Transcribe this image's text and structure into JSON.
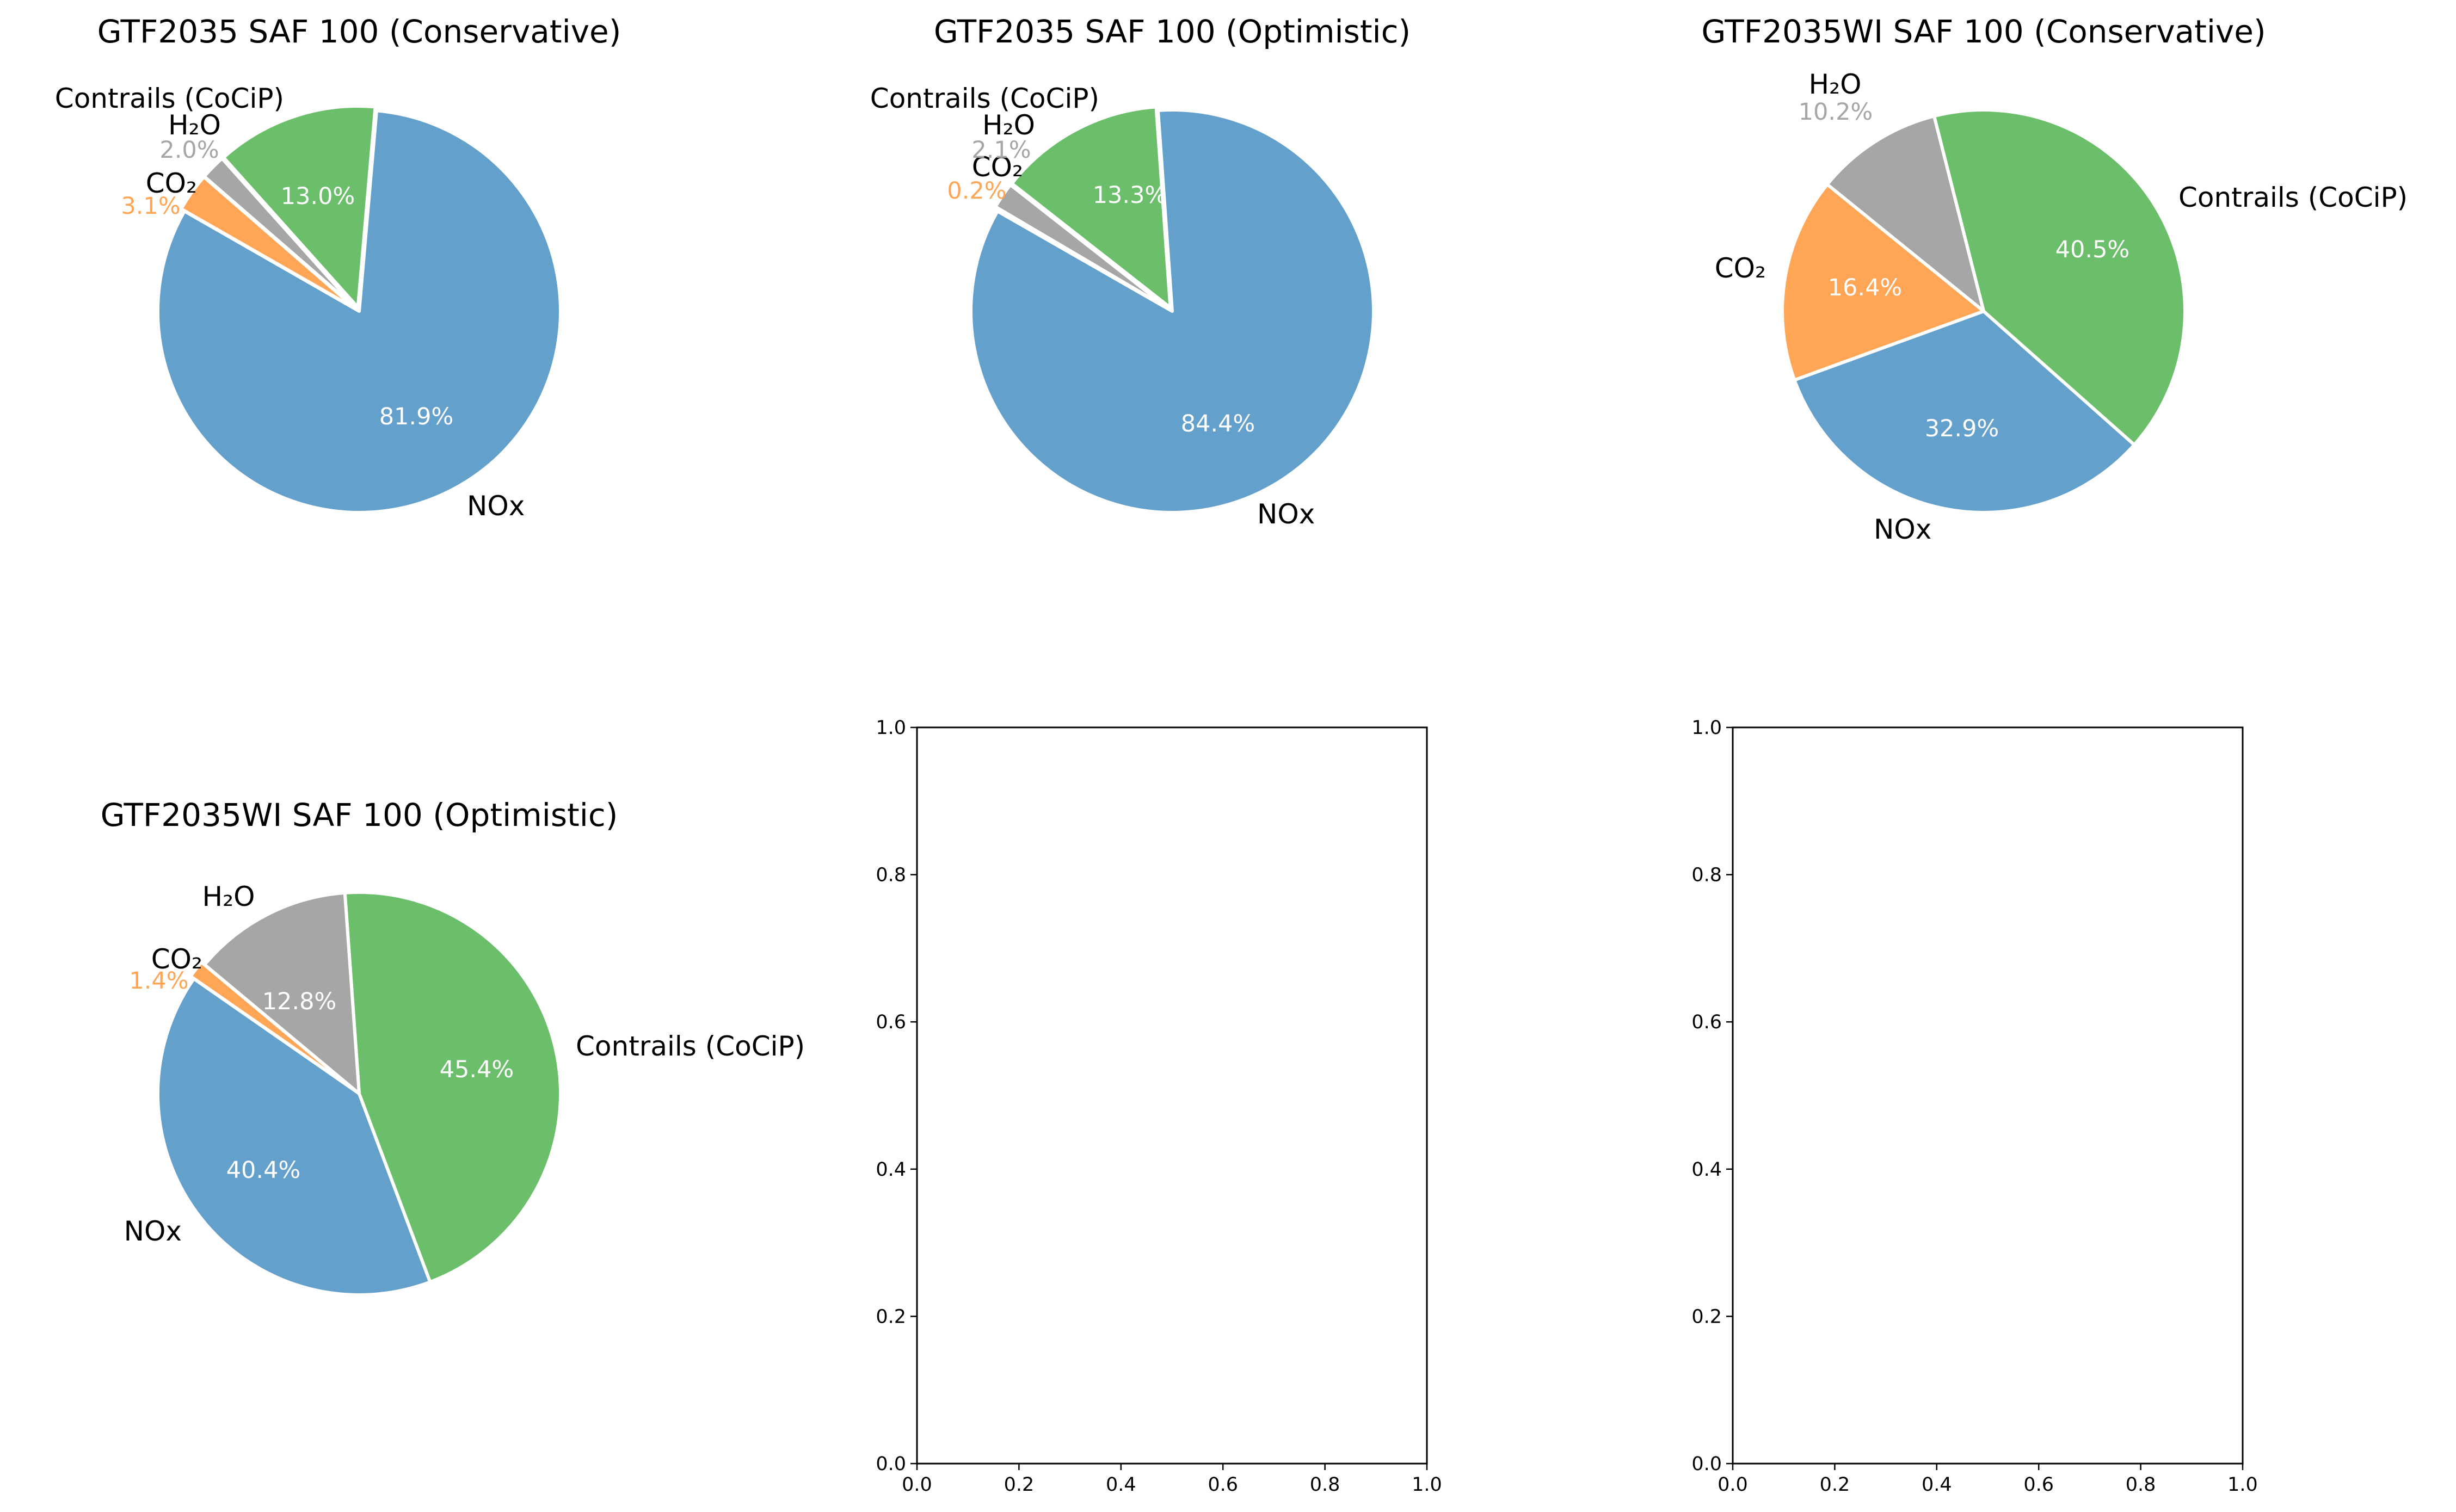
{
  "colors": {
    "NOx": "#63a0cb",
    "Contrails (CoCiP)": "#6bbe6a",
    "H₂O": "#a6a6a6",
    "CO₂": "#ffa556"
  },
  "chart_data": [
    {
      "type": "pie",
      "title": "GTF2035 SAF 100 (Conservative)",
      "slices": [
        {
          "label": "NOx",
          "value": 81.9,
          "pct_label": "81.9%"
        },
        {
          "label": "Contrails (CoCiP)",
          "value": 13.0,
          "pct_label": "13.0%"
        },
        {
          "label": "H₂O",
          "value": 2.0,
          "pct_label": "2.0%"
        },
        {
          "label": "CO₂",
          "value": 3.1,
          "pct_label": "3.1%"
        }
      ]
    },
    {
      "type": "pie",
      "title": "GTF2035 SAF 100 (Optimistic)",
      "slices": [
        {
          "label": "NOx",
          "value": 84.4,
          "pct_label": "84.4%"
        },
        {
          "label": "Contrails (CoCiP)",
          "value": 13.3,
          "pct_label": "13.3%"
        },
        {
          "label": "H₂O",
          "value": 2.1,
          "pct_label": "2.1%"
        },
        {
          "label": "CO₂",
          "value": 0.2,
          "pct_label": "0.2%"
        }
      ]
    },
    {
      "type": "pie",
      "title": "GTF2035WI SAF 100 (Conservative)",
      "slices": [
        {
          "label": "NOx",
          "value": 32.9,
          "pct_label": "32.9%"
        },
        {
          "label": "Contrails (CoCiP)",
          "value": 40.5,
          "pct_label": "40.5%"
        },
        {
          "label": "H₂O",
          "value": 10.2,
          "pct_label": "10.2%"
        },
        {
          "label": "CO₂",
          "value": 16.4,
          "pct_label": "16.4%"
        }
      ]
    },
    {
      "type": "pie",
      "title": "GTF2035WI SAF 100 (Optimistic)",
      "slices": [
        {
          "label": "NOx",
          "value": 40.4,
          "pct_label": "40.4%"
        },
        {
          "label": "Contrails (CoCiP)",
          "value": 45.4,
          "pct_label": "45.4%"
        },
        {
          "label": "H₂O",
          "value": 12.8,
          "pct_label": "12.8%"
        },
        {
          "label": "CO₂",
          "value": 1.4,
          "pct_label": "1.4%"
        }
      ]
    },
    {
      "type": "scatter",
      "title": "",
      "x": [],
      "y": [],
      "xlim": [
        0.0,
        1.0
      ],
      "ylim": [
        0.0,
        1.0
      ],
      "xticks": [
        "0.0",
        "0.2",
        "0.4",
        "0.6",
        "0.8",
        "1.0"
      ],
      "yticks": [
        "0.0",
        "0.2",
        "0.4",
        "0.6",
        "0.8",
        "1.0"
      ]
    },
    {
      "type": "scatter",
      "title": "",
      "x": [],
      "y": [],
      "xlim": [
        0.0,
        1.0
      ],
      "ylim": [
        0.0,
        1.0
      ],
      "xticks": [
        "0.0",
        "0.2",
        "0.4",
        "0.6",
        "0.8",
        "1.0"
      ],
      "yticks": [
        "0.0",
        "0.2",
        "0.4",
        "0.6",
        "0.8",
        "1.0"
      ]
    }
  ]
}
